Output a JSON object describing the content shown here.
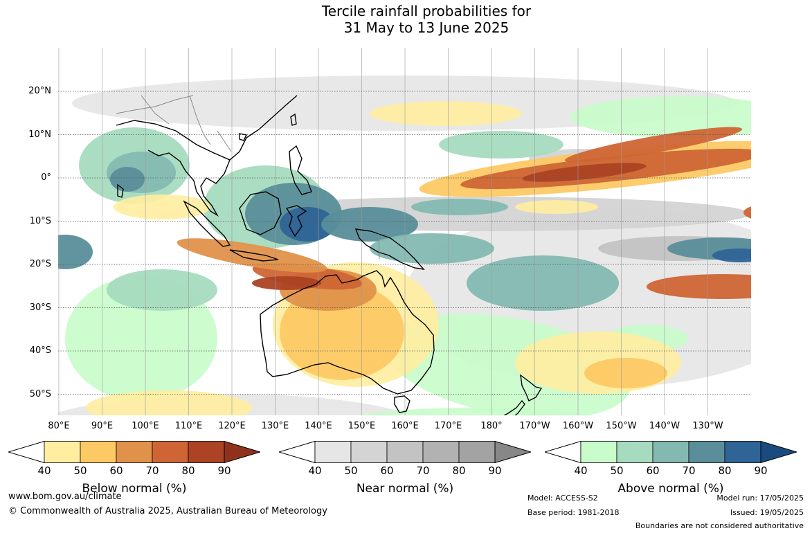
{
  "title_line1": "Tercile rainfall probabilities for",
  "title_line2": "31 May to 13 June 2025",
  "lat_labels": [
    "20°N",
    "10°N",
    "0°",
    "10°S",
    "20°S",
    "30°S",
    "40°S",
    "50°S"
  ],
  "lon_labels": [
    "80°E",
    "90°E",
    "100°E",
    "110°E",
    "120°E",
    "130°E",
    "140°E",
    "150°E",
    "160°E",
    "170°E",
    "180°",
    "170°W",
    "160°W",
    "150°W",
    "140°W",
    "130°W"
  ],
  "colorbars": [
    {
      "title": "Below normal (%)",
      "ticks": [
        "40",
        "50",
        "60",
        "70",
        "80",
        "90"
      ],
      "colors": [
        "#ffeda0",
        "#fdc965",
        "#e0924a",
        "#cf6535",
        "#ab4324",
        "#8f321c"
      ]
    },
    {
      "title": "Near normal (%)",
      "ticks": [
        "40",
        "50",
        "60",
        "70",
        "80",
        "90"
      ],
      "colors": [
        "#e6e6e6",
        "#d4d4d4",
        "#c3c3c3",
        "#b2b2b2",
        "#a3a3a3",
        "#878787"
      ]
    },
    {
      "title": "Above normal (%)",
      "ticks": [
        "40",
        "50",
        "60",
        "70",
        "80",
        "90"
      ],
      "colors": [
        "#c8fcca",
        "#a6dbbf",
        "#84b9b1",
        "#5a8e9a",
        "#2e6496",
        "#1a4b7e"
      ]
    }
  ],
  "footer": {
    "website": "www.bom.gov.au/climate",
    "copyright": "© Commonwealth of Australia 2025, Australian Bureau of Meteorology",
    "model": "Model: ACCESS-S2",
    "base_period": "Base period: 1981-2018",
    "model_run": "Model run: 17/05/2025",
    "issued": "Issued: 19/05/2025",
    "boundaries": "Boundaries are not considered authoritative"
  }
}
